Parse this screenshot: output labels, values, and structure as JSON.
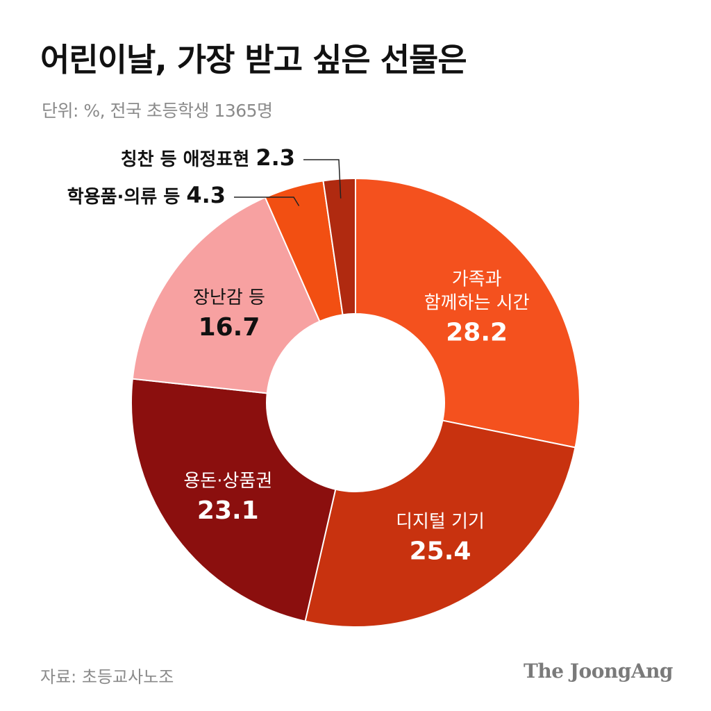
{
  "header": {
    "title": "어린이날, 가장 받고 싶은 선물은",
    "subtitle": "단위: %, 전국 초등학생 1365명"
  },
  "footer": {
    "source": "자료: 초등교사노조",
    "brand": "The JoongAng"
  },
  "chart_data": {
    "type": "pie",
    "title": "어린이날, 가장 받고 싶은 선물은",
    "subtitle": "단위: %, 전국 초등학생 1365명",
    "donut": true,
    "start": "12 o'clock",
    "direction": "clockwise",
    "slices": [
      {
        "label": "가족과 함께하는 시간",
        "label_lines": [
          "가족과",
          "함께하는 시간"
        ],
        "value": 28.2,
        "color": "#f4511e",
        "text_color": "#ffffff",
        "label_placement": "inside"
      },
      {
        "label": "디지털 기기",
        "label_lines": [
          "디지털 기기"
        ],
        "value": 25.4,
        "color": "#c8320f",
        "text_color": "#ffffff",
        "label_placement": "inside"
      },
      {
        "label": "용돈·상품권",
        "label_lines": [
          "용돈·상품권"
        ],
        "value": 23.1,
        "color": "#8b0f0e",
        "text_color": "#ffffff",
        "label_placement": "inside"
      },
      {
        "label": "장난감 등",
        "label_lines": [
          "장난감 등"
        ],
        "value": 16.7,
        "color": "#f7a1a1",
        "text_color": "#111111",
        "label_placement": "inside"
      },
      {
        "label": "학용품·의류 등",
        "label_lines": [
          "학용품·의류 등"
        ],
        "value": 4.3,
        "color": "#f24f12",
        "text_color": "#111111",
        "label_placement": "outside-leader"
      },
      {
        "label": "칭찬 등 애정표현",
        "label_lines": [
          "칭찬 등 애정표현"
        ],
        "value": 2.3,
        "color": "#b02a10",
        "text_color": "#111111",
        "label_placement": "outside-leader"
      }
    ]
  }
}
